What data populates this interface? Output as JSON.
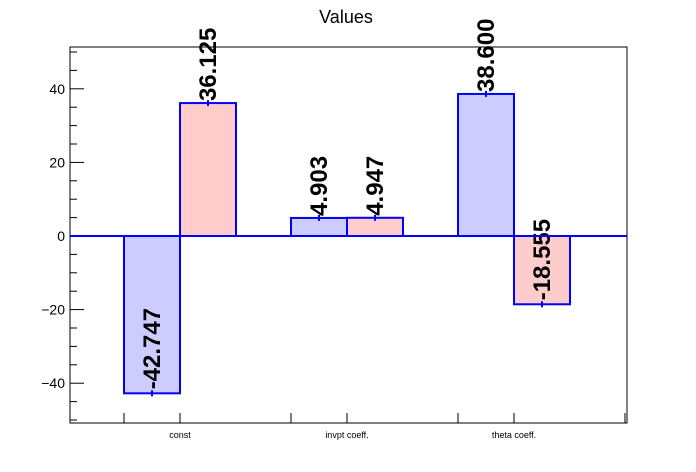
{
  "chart_data": {
    "type": "bar",
    "title": "Values",
    "xlabel": "",
    "ylabel": "",
    "categories": [
      "const",
      "invpt coeff.",
      "theta coeff."
    ],
    "series": [
      {
        "values": [
          -42.747,
          4.903,
          38.6
        ],
        "labels": [
          "-42.747",
          "4.903",
          "38.600"
        ],
        "color": "#ccccff"
      },
      {
        "values": [
          36.125,
          4.947,
          -18.555
        ],
        "labels": [
          "36.125",
          "4.947",
          "-18.555"
        ],
        "color": "#ffcccc"
      }
    ],
    "ylim": [
      -51,
      51
    ],
    "yticks": [
      -40,
      -20,
      0,
      20,
      40
    ],
    "ytick_labels": [
      "−40",
      "−20",
      "0",
      "20",
      "40"
    ],
    "error_bars": true,
    "bar_edge_color": "#0000ff",
    "grid": false,
    "legend": "none"
  }
}
